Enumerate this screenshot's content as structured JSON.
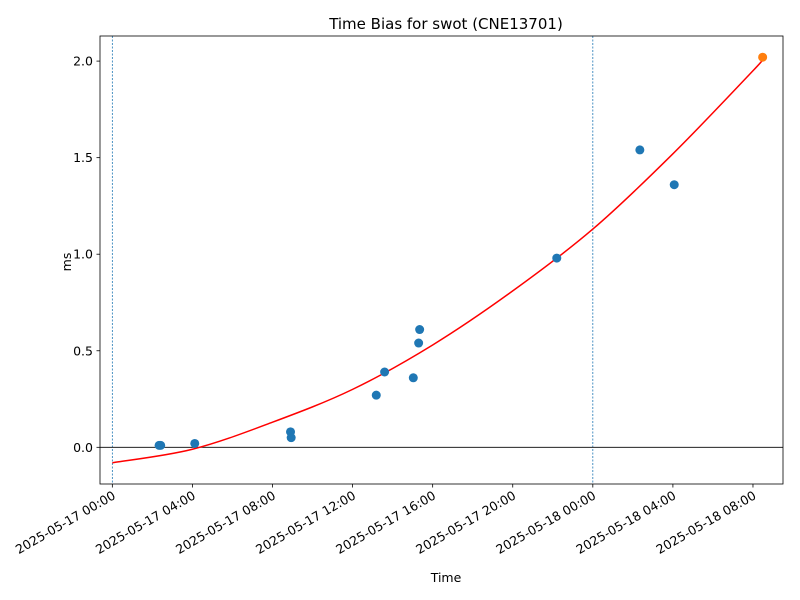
{
  "chart_data": {
    "type": "scatter",
    "title": "Time Bias for swot (CNE13701)",
    "xlabel": "Time",
    "ylabel": "ms",
    "x_ticks": [
      "2025-05-17 00:00",
      "2025-05-17 04:00",
      "2025-05-17 08:00",
      "2025-05-17 12:00",
      "2025-05-17 16:00",
      "2025-05-17 20:00",
      "2025-05-18 00:00",
      "2025-05-18 04:00",
      "2025-05-18 08:00"
    ],
    "y_ticks": [
      "0.0",
      "0.5",
      "1.0",
      "1.5",
      "2.0"
    ],
    "xlim": [
      "2025-05-16 23:23",
      "2025-05-18 09:30"
    ],
    "ylim": [
      -0.19,
      2.13
    ],
    "vertical_lines": [
      "2025-05-17 00:00",
      "2025-05-18 00:00"
    ],
    "horizontal_line": 0,
    "colors": {
      "points": "#1f77b4",
      "latest_point": "#ff7f0e",
      "fit": "#ff0000",
      "ref_lines": "#1f77b4"
    },
    "points": [
      {
        "x": "2025-05-17 02:20",
        "y": 0.01
      },
      {
        "x": "2025-05-17 02:25",
        "y": 0.01
      },
      {
        "x": "2025-05-17 04:07",
        "y": 0.02
      },
      {
        "x": "2025-05-17 08:54",
        "y": 0.08
      },
      {
        "x": "2025-05-17 08:56",
        "y": 0.05
      },
      {
        "x": "2025-05-17 13:11",
        "y": 0.27
      },
      {
        "x": "2025-05-17 13:36",
        "y": 0.39
      },
      {
        "x": "2025-05-17 15:02",
        "y": 0.36
      },
      {
        "x": "2025-05-17 15:18",
        "y": 0.54
      },
      {
        "x": "2025-05-17 15:21",
        "y": 0.61
      },
      {
        "x": "2025-05-17 22:12",
        "y": 0.98
      },
      {
        "x": "2025-05-18 02:21",
        "y": 1.54
      },
      {
        "x": "2025-05-18 04:04",
        "y": 1.36
      }
    ],
    "latest_point": {
      "x": "2025-05-18 08:29",
      "y": 2.02
    },
    "fit_curve": [
      {
        "x": "2025-05-17 00:00",
        "y": -0.08
      },
      {
        "x": "2025-05-17 04:00",
        "y": -0.01
      },
      {
        "x": "2025-05-17 08:00",
        "y": 0.13
      },
      {
        "x": "2025-05-17 12:00",
        "y": 0.3
      },
      {
        "x": "2025-05-17 16:00",
        "y": 0.53
      },
      {
        "x": "2025-05-17 20:00",
        "y": 0.81
      },
      {
        "x": "2025-05-18 00:00",
        "y": 1.13
      },
      {
        "x": "2025-05-18 04:00",
        "y": 1.52
      },
      {
        "x": "2025-05-18 08:00",
        "y": 1.95
      },
      {
        "x": "2025-05-18 08:29",
        "y": 2.01
      }
    ]
  }
}
